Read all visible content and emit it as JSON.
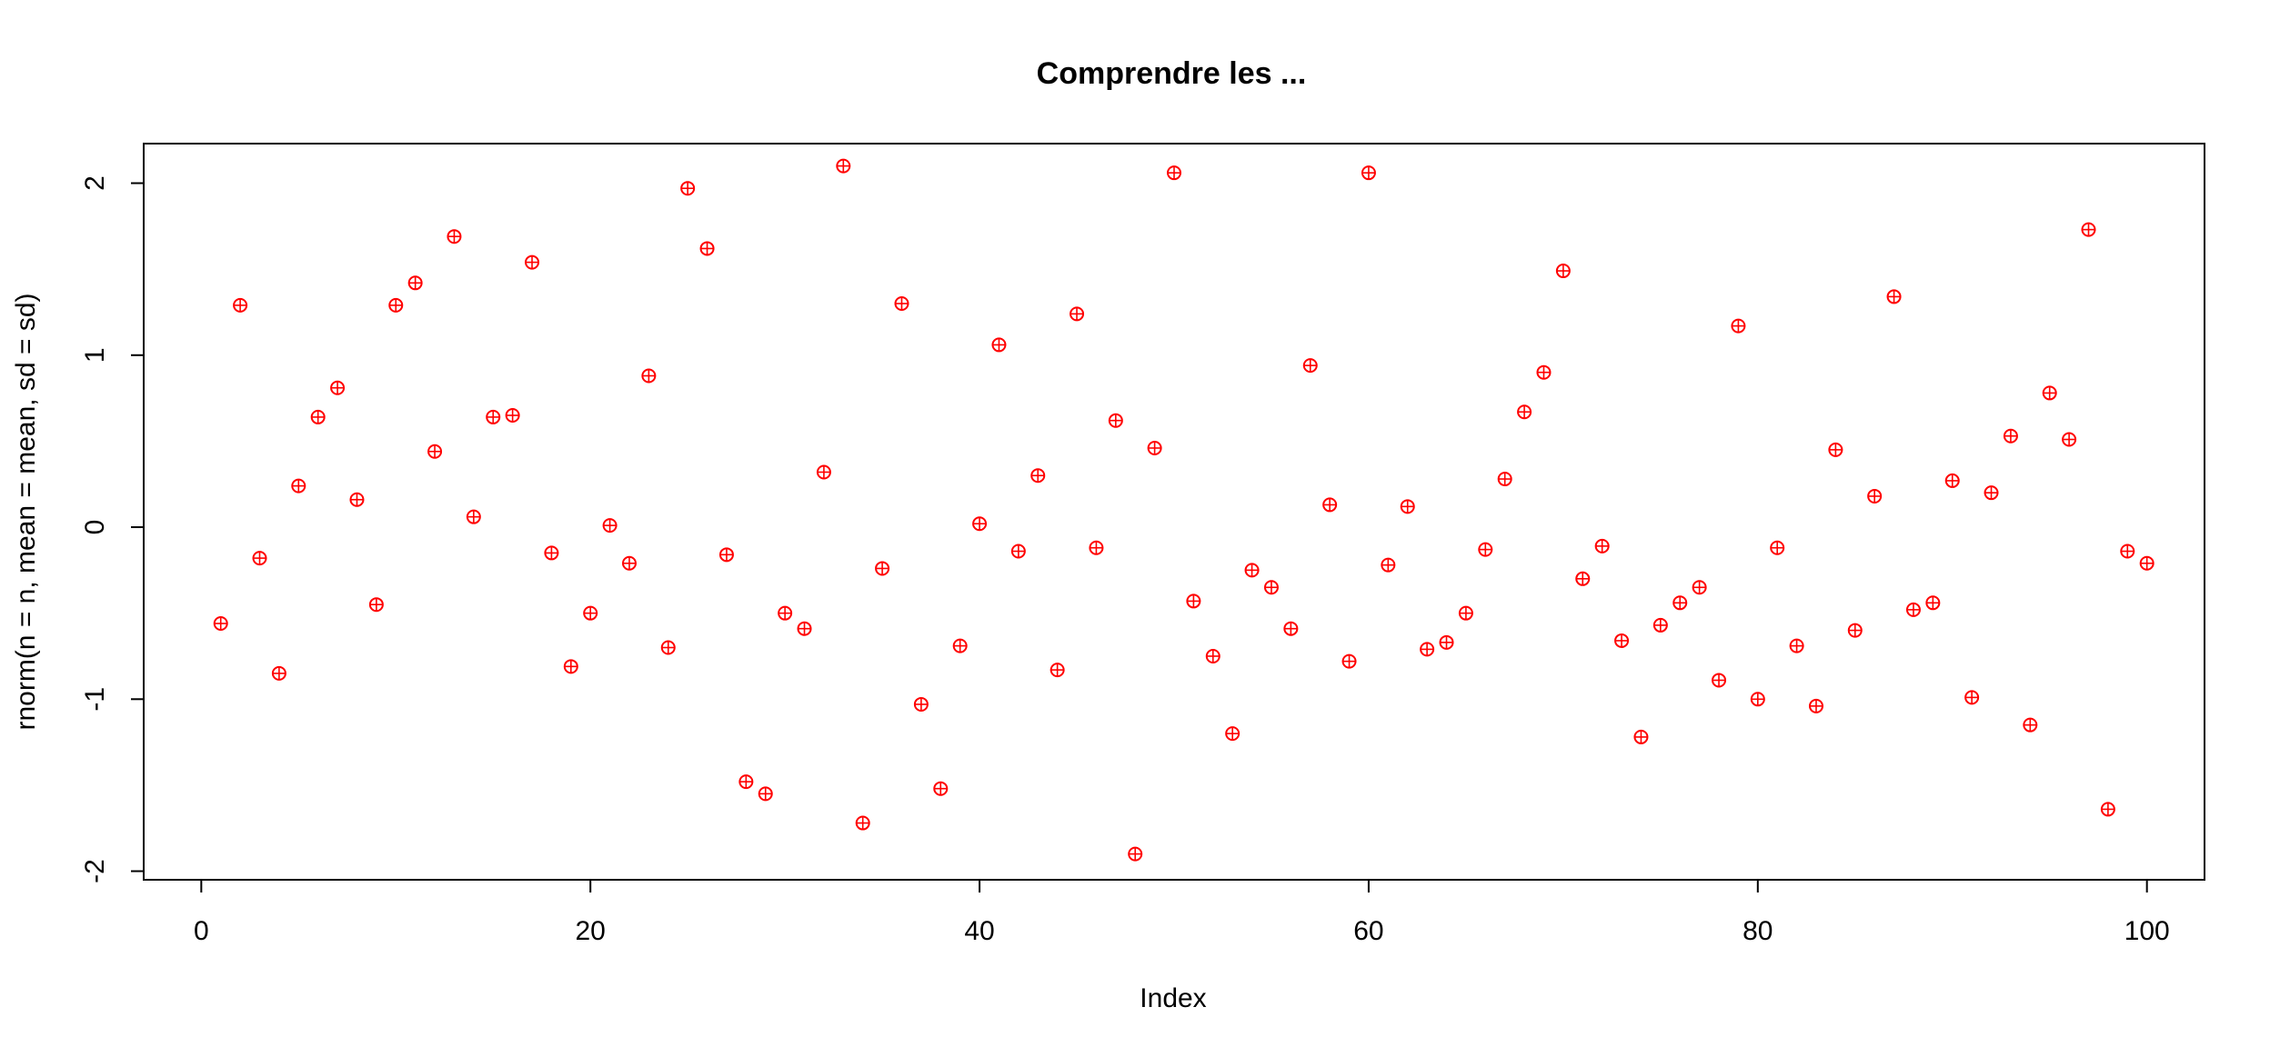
{
  "chart_data": {
    "type": "scatter",
    "title": "Comprendre les ...",
    "xlabel": "Index",
    "ylabel": "rnorm(n = n, mean = mean, sd = sd)",
    "xlim": [
      -2.96,
      102.96
    ],
    "ylim": [
      -2.05,
      2.23
    ],
    "x_ticks": [
      0,
      20,
      40,
      60,
      80,
      100
    ],
    "y_ticks": [
      -2,
      -1,
      0,
      1,
      2
    ],
    "x_tick_labels": [
      "0",
      "20",
      "40",
      "60",
      "80",
      "100"
    ],
    "y_tick_labels": [
      "-2",
      "-1",
      "0",
      "1",
      "2"
    ],
    "grid": false,
    "point_color": "#FF0000",
    "point_marker": "circle-plus",
    "x": [
      1,
      2,
      3,
      4,
      5,
      6,
      7,
      8,
      9,
      10,
      11,
      12,
      13,
      14,
      15,
      16,
      17,
      18,
      19,
      20,
      21,
      22,
      23,
      24,
      25,
      26,
      27,
      28,
      29,
      30,
      31,
      32,
      33,
      34,
      35,
      36,
      37,
      38,
      39,
      40,
      41,
      42,
      43,
      44,
      45,
      46,
      47,
      48,
      49,
      50,
      51,
      52,
      53,
      54,
      55,
      56,
      57,
      58,
      59,
      60,
      61,
      62,
      63,
      64,
      65,
      66,
      67,
      68,
      69,
      70,
      71,
      72,
      73,
      74,
      75,
      76,
      77,
      78,
      79,
      80,
      81,
      82,
      83,
      84,
      85,
      86,
      87,
      88,
      89,
      90,
      91,
      92,
      93,
      94,
      95,
      96,
      97,
      98,
      99,
      100
    ],
    "y": [
      -0.56,
      1.29,
      -0.18,
      -0.85,
      0.24,
      0.64,
      0.81,
      0.16,
      -0.45,
      1.29,
      1.42,
      0.44,
      1.69,
      0.06,
      0.64,
      0.65,
      1.54,
      -0.15,
      -0.81,
      -0.5,
      0.01,
      -0.21,
      0.88,
      -0.7,
      1.97,
      1.62,
      -0.16,
      -1.48,
      -1.55,
      -0.5,
      -0.59,
      0.32,
      2.1,
      -1.72,
      -0.24,
      1.3,
      -1.03,
      -1.52,
      -0.69,
      0.02,
      1.06,
      -0.14,
      0.3,
      -0.83,
      1.24,
      -0.12,
      0.62,
      -1.9,
      0.46,
      2.06,
      -0.43,
      -0.75,
      -1.2,
      -0.25,
      -0.35,
      -0.59,
      0.94,
      0.13,
      -0.78,
      2.06,
      -0.22,
      0.12,
      -0.71,
      -0.67,
      -0.5,
      -0.13,
      0.28,
      0.67,
      0.9,
      1.49,
      -0.3,
      -0.11,
      -0.66,
      -1.22,
      -0.57,
      -0.44,
      -0.35,
      -0.89,
      1.17,
      -1.0,
      -0.12,
      -0.69,
      -1.04,
      0.45,
      -0.6,
      0.18,
      1.34,
      -0.48,
      -0.44,
      0.27,
      -0.99,
      0.2,
      0.53,
      -1.15,
      0.78,
      0.51,
      1.73,
      -1.64,
      -0.14,
      -0.21
    ]
  }
}
